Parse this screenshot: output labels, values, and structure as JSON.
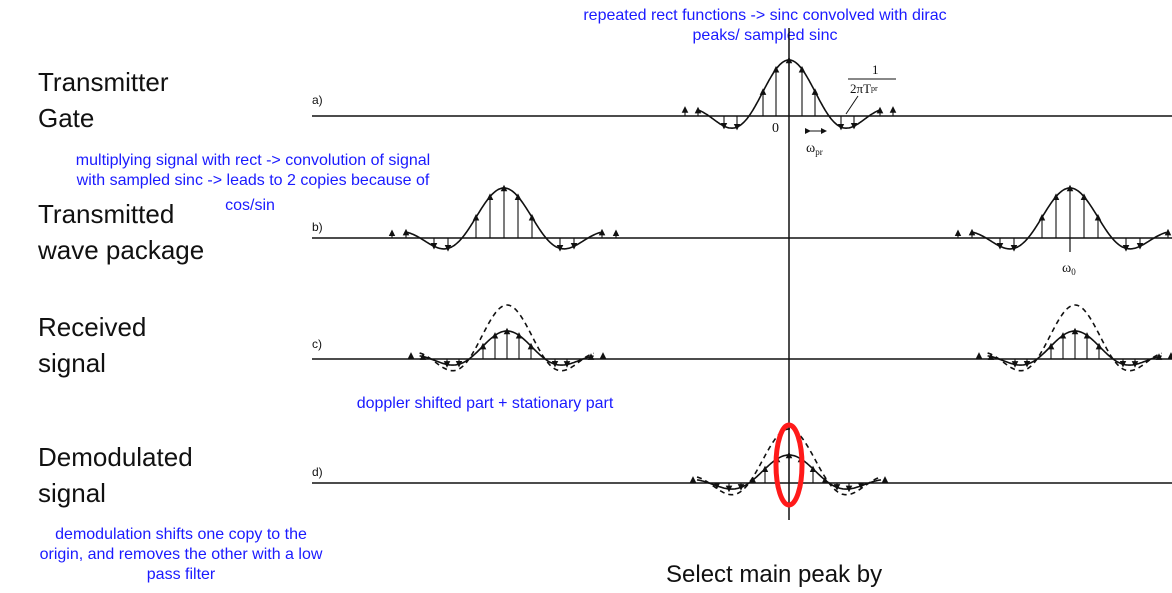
{
  "stages": {
    "transmitter_gate": [
      "Transmitter",
      "Gate"
    ],
    "transmitted": [
      "Transmitted",
      "wave package"
    ],
    "received": [
      "Received",
      "signal"
    ],
    "demodulated": [
      "Demodulated",
      "signal"
    ]
  },
  "panels": [
    "a)",
    "b)",
    "c)",
    "d)"
  ],
  "axis_labels": {
    "zero": "0",
    "omega_pr": "ω",
    "omega_pr_sub": "pr",
    "omega_0": "ω",
    "omega_0_sub": "0",
    "fraction_num": "1",
    "fraction_den": "2πT",
    "fraction_den_sub": "pr"
  },
  "annotations": {
    "top": [
      "repeated rect functions -> sinc convolved with dirac",
      "peaks/ sampled sinc"
    ],
    "multiply": [
      "multiplying signal with rect -> convolution of signal",
      "with sampled sinc -> leads to 2 copies because of"
    ],
    "cos_sin": "cos/sin",
    "doppler": "doppler shifted part + stationary part",
    "demod": [
      "demodulation shifts one copy to the",
      "origin, and removes the other with a low",
      "pass filter"
    ]
  },
  "footer": "Select main peak by",
  "colors": {
    "annotation": "#1a1aff",
    "highlight": "#ff1a1a",
    "ink": "#111111"
  }
}
